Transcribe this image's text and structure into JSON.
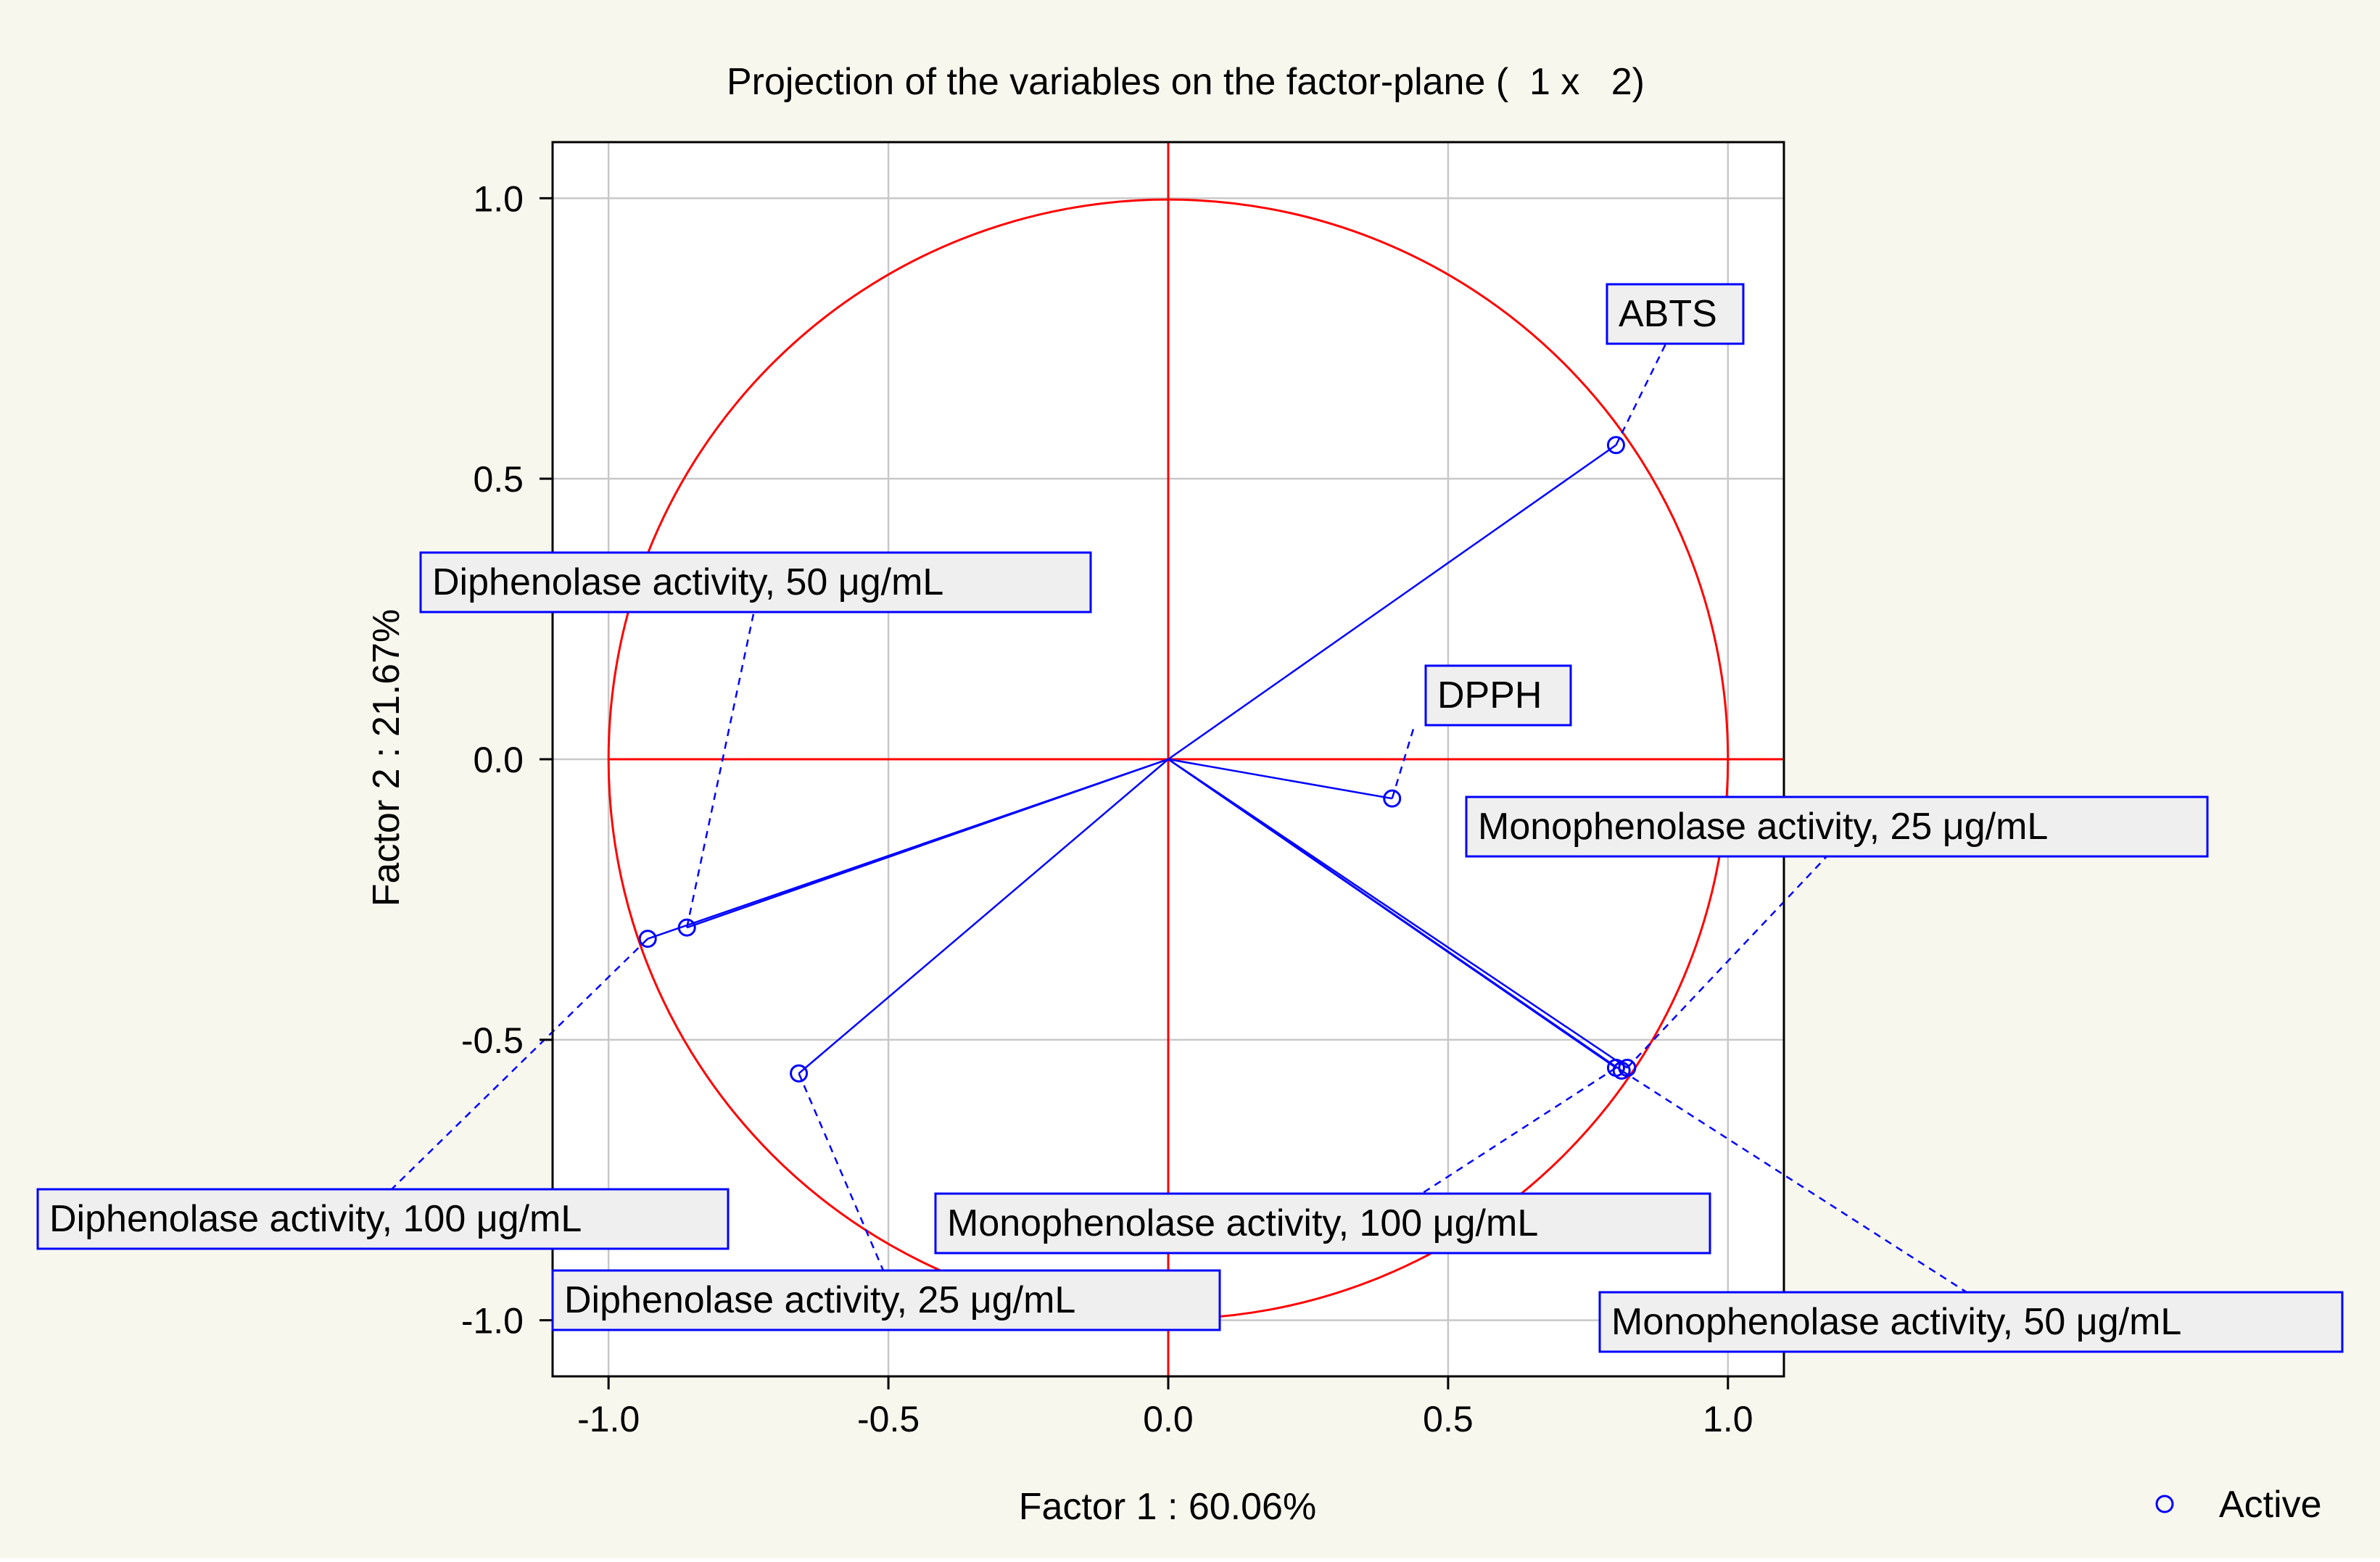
{
  "colors": {
    "background": "#f7f7ee",
    "plot_background": "#ffffff",
    "grid": "#c8c8c8",
    "circle_axes": "#ff0000",
    "vectors": "#0000ff",
    "label_box_fill": "#efefef",
    "label_box_stroke": "#0000ff",
    "text": "#000000"
  },
  "chart_data": {
    "type": "scatter",
    "title": "Projection of the variables on the factor-plane (  1 x   2)",
    "xlabel": "Factor 1 : 60.06%",
    "ylabel": "Factor 2 : 21.67%",
    "xlim": [
      -1.1,
      1.1
    ],
    "ylim": [
      -1.1,
      1.1
    ],
    "xticks": [
      -1.0,
      -0.5,
      0.0,
      0.5,
      1.0
    ],
    "yticks": [
      1.0,
      0.5,
      0.0,
      -0.5,
      -1.0
    ],
    "xtick_labels": [
      "-1.0",
      "-0.5",
      "0.0",
      "0.5",
      "1.0"
    ],
    "ytick_labels": [
      "1.0",
      "0.5",
      "0.0",
      "-0.5",
      "-1.0"
    ],
    "grid": true,
    "unit_circle": true,
    "legend": {
      "position": "bottom-right",
      "label": "Active",
      "marker": "circle"
    },
    "points": [
      {
        "name": "ABTS",
        "x": 0.8,
        "y": 0.56
      },
      {
        "name": "DPPH",
        "x": 0.4,
        "y": -0.07
      },
      {
        "name": "Monophenolase activity, 25 μg/mL",
        "x": 0.82,
        "y": -0.55
      },
      {
        "name": "Monophenolase activity, 50 μg/mL",
        "x": 0.81,
        "y": -0.555
      },
      {
        "name": "Monophenolase activity, 100 μg/mL",
        "x": 0.8,
        "y": -0.55
      },
      {
        "name": "Diphenolase activity, 25 μg/mL",
        "x": -0.66,
        "y": -0.56
      },
      {
        "name": "Diphenolase activity, 50 μg/mL",
        "x": -0.86,
        "y": -0.3
      },
      {
        "name": "Diphenolase activity, 100 μg/mL",
        "x": -0.93,
        "y": -0.32
      }
    ]
  }
}
